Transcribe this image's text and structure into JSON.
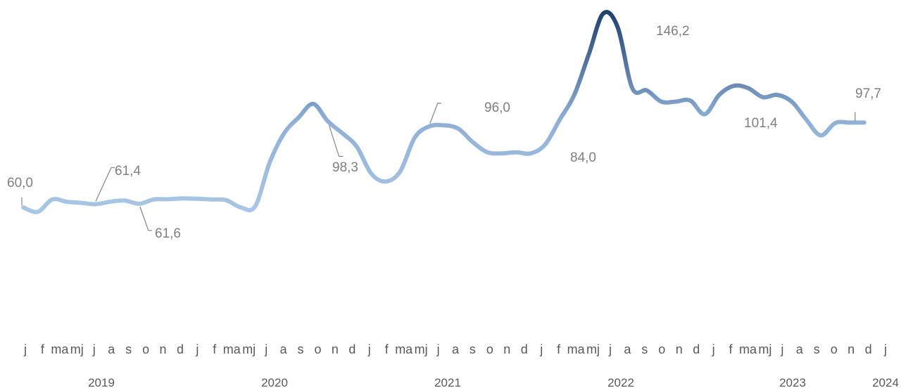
{
  "chart_data": {
    "type": "line",
    "series": [
      {
        "values": [
          60.0,
          58.0,
          63.5,
          62.5,
          62.0,
          61.4,
          62.5,
          63.0,
          61.6,
          63.5,
          63.6,
          64.0,
          63.8,
          63.5,
          63.2,
          60.0,
          60.5,
          80.0,
          93.0,
          100.0,
          106.0,
          98.3,
          93.0,
          87.0,
          75.0,
          71.5,
          76.0,
          91.0,
          96.0,
          96.5,
          95.0,
          89.0,
          84.5,
          84.0,
          84.5,
          84.0,
          88.0,
          99.0,
          110.0,
          128.0,
          146.2,
          140.0,
          113.0,
          112.0,
          107.0,
          107.0,
          107.5,
          101.4,
          110.0,
          114.0,
          113.0,
          109.0,
          110.0,
          107.0,
          99.0,
          92.0,
          97.5,
          97.7,
          97.7
        ]
      }
    ],
    "month_ticks": [
      "j",
      "f",
      "ma",
      "mj",
      "j",
      "a",
      "s",
      "o",
      "n",
      "d",
      "j",
      "f",
      "ma",
      "mj",
      "j",
      "a",
      "s",
      "o",
      "n",
      "d",
      "j",
      "f",
      "ma",
      "mj",
      "j",
      "a",
      "s",
      "o",
      "n",
      "d",
      "j",
      "f",
      "ma",
      "mj",
      "j",
      "a",
      "s",
      "o",
      "n",
      "d",
      "j",
      "f",
      "ma",
      "mj",
      "j",
      "a",
      "s",
      "o",
      "n",
      "d",
      "j"
    ],
    "years": [
      "2019",
      "2020",
      "2021",
      "2022",
      "2023",
      "2024"
    ],
    "annotations": [
      {
        "index": 0,
        "label": "60,0"
      },
      {
        "index": 5,
        "label": "61,4"
      },
      {
        "index": 8,
        "label": "61,6"
      },
      {
        "index": 21,
        "label": "98,3"
      },
      {
        "index": 28,
        "label": "96,0"
      },
      {
        "index": 33,
        "label": "84,0"
      },
      {
        "index": 40,
        "label": "146,2"
      },
      {
        "index": 47,
        "label": "101,4"
      },
      {
        "index": 58,
        "label": "97,7"
      }
    ],
    "ylim": [
      25,
      150
    ],
    "gradient_colors": [
      "#a9c6e6",
      "#1f3f6e"
    ]
  }
}
